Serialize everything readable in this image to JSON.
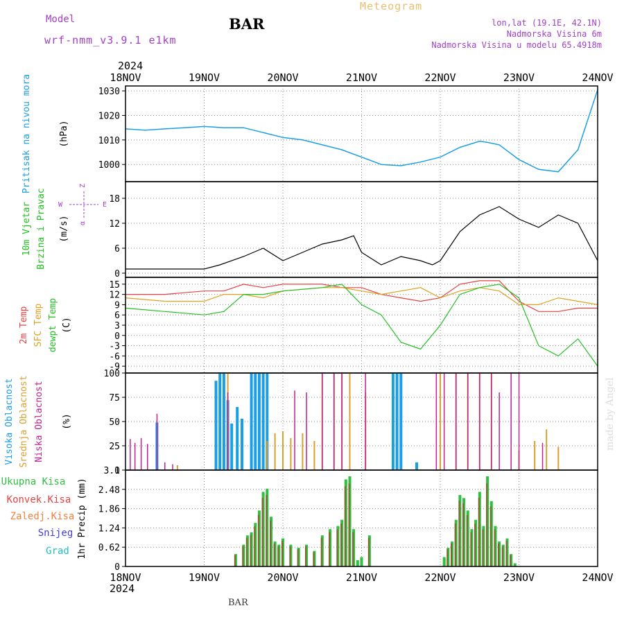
{
  "header": {
    "model_label": "Model",
    "model_name": "wrf-nmm_v3.9.1 e1km",
    "station": "BAR",
    "title": "Meteogram",
    "location_line1": "lon,lat (19.1E, 42.1N)",
    "location_line2": "Nadmorska Visina 6m",
    "location_line3": "Nadmorska Visina u modelu 65.4918m"
  },
  "footer": {
    "station": "BAR",
    "watermark": "made by Angel"
  },
  "colors": {
    "pressure": "#1a9ee6",
    "temp2m": "#e84040",
    "sfc_temp": "#e0a020",
    "dewpt": "#22c020",
    "cloud_high": "#1a9ee6",
    "cloud_mid": "#d8a030",
    "cloud_low": "#c02090",
    "precip_total": "#30c040",
    "precip_conv": "#e84040",
    "precip_frz": "#f08040",
    "precip_snow": "#4040e0",
    "precip_grad": "#20c0c0",
    "wind_label": "#22c020",
    "wind_axis": "#a040c8"
  },
  "chart_data": {
    "type": "meteogram",
    "x_axis": {
      "year": "2024",
      "day_labels": [
        "18NOV",
        "19NOV",
        "20NOV",
        "21NOV",
        "22NOV",
        "23NOV",
        "24NOV"
      ],
      "range_days": [
        0,
        6
      ]
    },
    "panels": [
      {
        "id": "pressure",
        "type": "line",
        "title": "Pritisak na nivou mora",
        "unit": "(hPa)",
        "ylim": [
          993,
          1032
        ],
        "yticks": [
          1000,
          1010,
          1020,
          1030
        ],
        "series": [
          {
            "x": [
              0,
              0.25,
              0.5,
              0.75,
              1.0,
              1.25,
              1.5,
              1.75,
              2.0,
              2.25,
              2.5,
              2.75,
              3.0,
              3.25,
              3.5,
              3.75,
              4.0,
              4.25,
              4.5,
              4.6,
              4.75,
              5.0,
              5.25,
              5.5,
              5.75,
              6.0
            ],
            "y": [
              1014.5,
              1014,
              1014.5,
              1015,
              1015.5,
              1015,
              1015,
              1013,
              1011,
              1010,
              1008,
              1006,
              1003,
              1000,
              999.5,
              1001,
              1003,
              1007,
              1009.5,
              1009,
              1008,
              1002,
              998,
              997,
              1006,
              1030.5
            ]
          }
        ]
      },
      {
        "id": "wind",
        "type": "line",
        "title": "10m Vjetar",
        "subtitle": "Brzina i Pravac",
        "unit": "(m/s)",
        "compass": {
          "n": "Z",
          "s": "α",
          "w": "W",
          "e": "E"
        },
        "ylim": [
          -1,
          22
        ],
        "yticks": [
          0,
          6,
          12,
          18
        ],
        "series": [
          {
            "x": [
              0,
              0.5,
              1.0,
              1.2,
              1.5,
              1.75,
              2.0,
              2.25,
              2.5,
              2.75,
              2.9,
              3.0,
              3.25,
              3.5,
              3.75,
              3.9,
              4.0,
              4.25,
              4.5,
              4.75,
              5.0,
              5.25,
              5.5,
              5.75,
              6.0
            ],
            "y": [
              1,
              1,
              1,
              2,
              4,
              6,
              3,
              5,
              7,
              8,
              9,
              5,
              2,
              4,
              3,
              2,
              3,
              10,
              14,
              16,
              13,
              11,
              14,
              12,
              3
            ]
          }
        ]
      },
      {
        "id": "temperature",
        "type": "line",
        "title_lines": [
          "2m Temp",
          "SFC Temp",
          "dewpt Temp"
        ],
        "unit": "(C)",
        "ylim": [
          -11,
          17
        ],
        "yticks": [
          -9,
          -6,
          -3,
          0,
          3,
          6,
          9,
          12,
          15
        ],
        "series": [
          {
            "name": "2m Temp",
            "x": [
              0,
              0.5,
              1.0,
              1.25,
              1.5,
              1.75,
              2.0,
              2.5,
              2.75,
              3.0,
              3.25,
              3.5,
              3.75,
              4.0,
              4.25,
              4.5,
              4.75,
              5.0,
              5.25,
              5.5,
              5.75,
              6.0
            ],
            "y": [
              12,
              12,
              13,
              13,
              15,
              14,
              15,
              15,
              14,
              14,
              12,
              11,
              10,
              11,
              15,
              16,
              16,
              10,
              7,
              7,
              8,
              8
            ]
          },
          {
            "name": "SFC Temp",
            "x": [
              0,
              0.5,
              1.0,
              1.25,
              1.5,
              1.75,
              2.0,
              2.5,
              2.75,
              3.0,
              3.25,
              3.5,
              3.75,
              4.0,
              4.25,
              4.5,
              4.75,
              5.0,
              5.25,
              5.5,
              5.75,
              6.0
            ],
            "y": [
              11,
              10,
              10,
              12,
              12,
              11,
              13,
              14,
              14,
              13,
              12,
              13,
              14,
              11,
              13,
              14,
              13,
              9,
              9,
              11,
              10,
              9
            ]
          },
          {
            "name": "dewpt Temp",
            "x": [
              0,
              0.5,
              1.0,
              1.25,
              1.5,
              1.75,
              2.0,
              2.5,
              2.75,
              3.0,
              3.25,
              3.5,
              3.75,
              4.0,
              4.25,
              4.5,
              4.75,
              5.0,
              5.25,
              5.5,
              5.75,
              6.0
            ],
            "y": [
              8,
              7,
              6,
              7,
              12,
              12,
              13,
              14,
              15,
              9,
              6,
              -2,
              -4,
              3,
              12,
              14,
              15,
              11,
              -3,
              -6,
              -1,
              -9
            ]
          }
        ]
      },
      {
        "id": "clouds",
        "type": "bar",
        "title_lines": [
          "Visoka Oblacnost",
          "Srednja Oblacnost",
          "Niska Oblacnost"
        ],
        "unit": "(%)",
        "ylim": [
          0,
          100
        ],
        "yticks": [
          0,
          25,
          50,
          75,
          100
        ],
        "series": [
          {
            "name": "Visoka Oblacnost",
            "x": [
              0.33,
              0.4,
              1.15,
              1.2,
              1.25,
              1.3,
              1.35,
              1.42,
              1.48,
              1.6,
              1.65,
              1.7,
              1.75,
              1.8,
              3.4,
              3.45,
              3.5,
              3.7,
              4.8
            ],
            "values": [
              0,
              49,
              92,
              100,
              100,
              72,
              48,
              65,
              53,
              100,
              100,
              100,
              100,
              100,
              100,
              100,
              100,
              8,
              0
            ]
          },
          {
            "name": "Srednja Oblacnost",
            "x": [
              0.66,
              1.3,
              1.8,
              1.9,
              2.0,
              2.1,
              2.25,
              2.4,
              2.5,
              2.65,
              2.75,
              2.85,
              3.05,
              4.0,
              4.2,
              4.35,
              4.5,
              4.65,
              5.0,
              5.2,
              5.35,
              5.5
            ],
            "values": [
              5,
              100,
              30,
              38,
              40,
              33,
              38,
              30,
              100,
              100,
              100,
              100,
              80,
              100,
              100,
              100,
              100,
              100,
              20,
              30,
              42,
              24
            ]
          },
          {
            "name": "Niska Oblacnost",
            "x": [
              0.06,
              0.12,
              0.2,
              0.28,
              0.4,
              0.5,
              0.6,
              1.3,
              2.15,
              2.3,
              2.5,
              2.65,
              2.75,
              3.05,
              3.95,
              4.05,
              4.2,
              4.35,
              4.5,
              4.65,
              4.75,
              4.9,
              5.0,
              5.3
            ],
            "values": [
              32,
              28,
              33,
              27,
              58,
              8,
              6,
              80,
              82,
              80,
              100,
              100,
              100,
              100,
              100,
              100,
              100,
              100,
              100,
              100,
              80,
              100,
              100,
              28
            ]
          }
        ]
      },
      {
        "id": "precip",
        "type": "bar",
        "title": "1hr Precip",
        "unit": "(mm)",
        "legend": [
          "Ukupna Kisa",
          "Konvek.Kisa",
          "Zaledj.Kisa",
          "Snijeg",
          "Grad"
        ],
        "ylim": [
          0,
          3.1
        ],
        "yticks": [
          0,
          0.62,
          1.24,
          1.86,
          2.48,
          3.1
        ],
        "series": [
          {
            "name": "Ukupna Kisa",
            "x": [
              1.4,
              1.5,
              1.55,
              1.6,
              1.65,
              1.7,
              1.75,
              1.8,
              1.85,
              1.9,
              1.95,
              2.0,
              2.1,
              2.2,
              2.3,
              2.4,
              2.5,
              2.6,
              2.7,
              2.75,
              2.8,
              2.85,
              2.9,
              2.95,
              3.0,
              3.1,
              4.05,
              4.1,
              4.15,
              4.2,
              4.25,
              4.3,
              4.35,
              4.4,
              4.45,
              4.5,
              4.55,
              4.6,
              4.65,
              4.7,
              4.75,
              4.8,
              4.85,
              4.9,
              4.95
            ],
            "values": [
              0.4,
              0.7,
              1.0,
              1.1,
              1.4,
              1.8,
              2.4,
              2.5,
              1.6,
              0.8,
              0.7,
              0.9,
              0.7,
              0.6,
              0.7,
              0.5,
              1.0,
              1.2,
              1.3,
              1.5,
              2.8,
              2.9,
              1.2,
              0.2,
              0.3,
              1.0,
              0.3,
              0.6,
              0.8,
              1.5,
              2.3,
              2.2,
              1.8,
              1.2,
              1.5,
              2.4,
              1.3,
              2.9,
              2.1,
              1.3,
              0.8,
              0.7,
              0.9,
              0.4,
              0.1
            ]
          }
        ]
      }
    ]
  }
}
